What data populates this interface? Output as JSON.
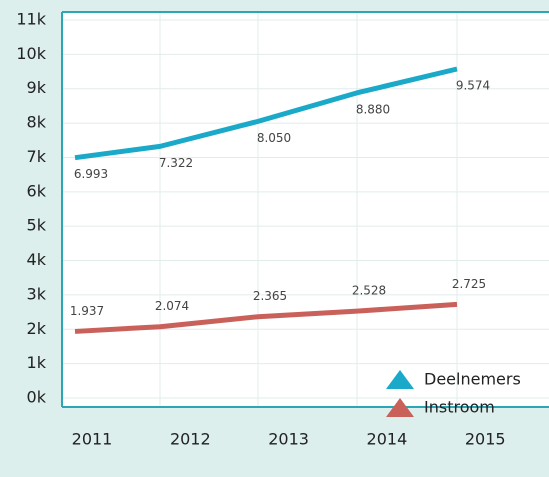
{
  "chart_data": {
    "type": "line",
    "categories": [
      "2011",
      "2012",
      "2013",
      "2014",
      "2015"
    ],
    "series": [
      {
        "name": "Deelnemers",
        "color": "#1aa9c9",
        "values": [
          6.993,
          7.322,
          8.05,
          8.88,
          9.574
        ],
        "value_labels": [
          "6.993",
          "7.322",
          "8.050",
          "8.880",
          "9.574"
        ]
      },
      {
        "name": "Instroom",
        "color": "#c9615a",
        "values": [
          1.937,
          2.074,
          2.365,
          2.528,
          2.725
        ]
      }
    ],
    "ylim": [
      0,
      11
    ],
    "yticks": [
      {
        "value": 0,
        "label": "0k"
      },
      {
        "value": 1,
        "label": "1k"
      },
      {
        "value": 2,
        "label": "2k"
      },
      {
        "value": 3,
        "label": "3k"
      },
      {
        "value": 4,
        "label": "4k"
      },
      {
        "value": 5,
        "label": "5k"
      },
      {
        "value": 6,
        "label": "6k"
      },
      {
        "value": 7,
        "label": "7k"
      },
      {
        "value": 8,
        "label": "8k"
      },
      {
        "value": 9,
        "label": "9k"
      },
      {
        "value": 10,
        "label": "10k"
      },
      {
        "value": 11,
        "label": "11k"
      }
    ],
    "grid": true,
    "legend": "lower right"
  }
}
